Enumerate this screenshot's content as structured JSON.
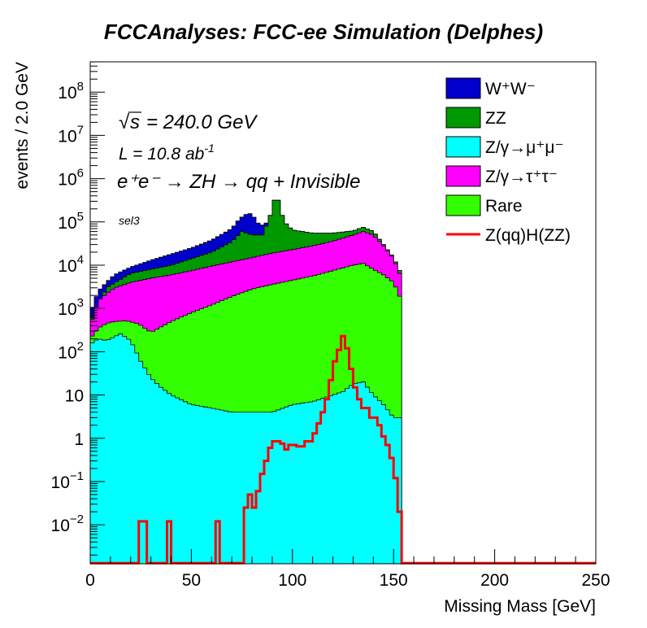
{
  "chart_data": {
    "type": "histogram-stacked",
    "title": "FCCAnalyses: FCC-ee Simulation (Delphes)",
    "xlabel": "Missing Mass [GeV]",
    "ylabel": "events / 2.0 GeV",
    "xlim": [
      0,
      250
    ],
    "ylim_log10": [
      -2.9,
      8.7
    ],
    "yscale": "log",
    "bin_width": 2.0,
    "x_ticks": [
      0,
      50,
      100,
      150,
      200,
      250
    ],
    "x_tick_labels": [
      "0",
      "50",
      "100",
      "150",
      "200",
      "250"
    ],
    "y_ticks": [
      {
        "value": 0.01,
        "base": "10",
        "exp": "−2"
      },
      {
        "value": 0.1,
        "base": "10",
        "exp": "−1"
      },
      {
        "value": 1,
        "base": "1",
        "exp": ""
      },
      {
        "value": 10,
        "base": "10",
        "exp": ""
      },
      {
        "value": 100,
        "base": "10",
        "exp": "2"
      },
      {
        "value": 1000,
        "base": "10",
        "exp": "3"
      },
      {
        "value": 10000,
        "base": "10",
        "exp": "4"
      },
      {
        "value": 100000,
        "base": "10",
        "exp": "5"
      },
      {
        "value": 1000000,
        "base": "10",
        "exp": "6"
      },
      {
        "value": 10000000,
        "base": "10",
        "exp": "7"
      },
      {
        "value": 100000000,
        "base": "10",
        "exp": "8"
      }
    ],
    "annotations": {
      "sqrt_s": "= 240.0 GeV",
      "lumi_main": "L = 10.8 ab",
      "lumi_exp": "-1",
      "process": "e⁺e⁻ → ZH → qq + Invisible",
      "selection": "sel3"
    },
    "legend": {
      "placement": "top-right",
      "entries": [
        {
          "label": "W⁺W⁻",
          "color": "#0000cc"
        },
        {
          "label": "ZZ",
          "color": "#009900"
        },
        {
          "label": "Z/γ→μ⁺μ⁻",
          "color": "#00ffff"
        },
        {
          "label": "Z/γ→τ⁺τ⁻",
          "color": "#ff00ff"
        },
        {
          "label": "Rare",
          "color": "#33ff00"
        },
        {
          "label": "Z(qq)H(ZZ)",
          "color": "#ff0000"
        }
      ]
    },
    "stack_order_bottom_to_top": [
      "Z/γ→μ⁺μ⁻",
      "Rare",
      "Z/γ→τ⁺τ⁻",
      "ZZ",
      "W⁺W⁻"
    ],
    "cumulative_envelopes": [
      {
        "name": "Z/γ→μ⁺μ⁻",
        "color": "#00ffff",
        "points": [
          [
            0,
            150
          ],
          [
            4,
            200
          ],
          [
            8,
            180
          ],
          [
            10,
            200
          ],
          [
            15,
            260
          ],
          [
            20,
            180
          ],
          [
            25,
            60
          ],
          [
            30,
            25
          ],
          [
            35,
            15
          ],
          [
            40,
            10
          ],
          [
            50,
            6
          ],
          [
            60,
            5
          ],
          [
            70,
            4
          ],
          [
            80,
            4
          ],
          [
            90,
            4
          ],
          [
            100,
            6
          ],
          [
            110,
            7
          ],
          [
            120,
            10
          ],
          [
            125,
            12
          ],
          [
            130,
            18
          ],
          [
            135,
            20
          ],
          [
            140,
            10
          ],
          [
            145,
            6
          ],
          [
            150,
            3
          ],
          [
            154,
            3
          ],
          [
            154.01,
            0.0013
          ]
        ]
      },
      {
        "name": "Rare",
        "color": "#33ff00",
        "points": [
          [
            0,
            200
          ],
          [
            4,
            350
          ],
          [
            8,
            450
          ],
          [
            12,
            500
          ],
          [
            18,
            520
          ],
          [
            24,
            440
          ],
          [
            30,
            280
          ],
          [
            40,
            500
          ],
          [
            50,
            800
          ],
          [
            60,
            1200
          ],
          [
            70,
            1900
          ],
          [
            80,
            2800
          ],
          [
            90,
            3600
          ],
          [
            100,
            4500
          ],
          [
            110,
            5600
          ],
          [
            120,
            7500
          ],
          [
            130,
            10000
          ],
          [
            135,
            11000
          ],
          [
            140,
            8000
          ],
          [
            145,
            6000
          ],
          [
            150,
            4000
          ],
          [
            154,
            1500
          ],
          [
            154.01,
            0.0013
          ]
        ]
      },
      {
        "name": "Z/γ→τ⁺τ⁻",
        "color": "#ff00ff",
        "points": [
          [
            0,
            400
          ],
          [
            4,
            1500
          ],
          [
            8,
            2200
          ],
          [
            12,
            3000
          ],
          [
            20,
            4000
          ],
          [
            30,
            5000
          ],
          [
            40,
            6000
          ],
          [
            50,
            7500
          ],
          [
            60,
            9500
          ],
          [
            70,
            12000
          ],
          [
            80,
            15000
          ],
          [
            90,
            19000
          ],
          [
            100,
            23000
          ],
          [
            110,
            28000
          ],
          [
            120,
            36000
          ],
          [
            130,
            50000
          ],
          [
            135,
            60000
          ],
          [
            140,
            50000
          ],
          [
            145,
            28000
          ],
          [
            150,
            14000
          ],
          [
            154,
            5000
          ],
          [
            154.01,
            0.0013
          ]
        ]
      },
      {
        "name": "ZZ",
        "color": "#009900",
        "points": [
          [
            0,
            500
          ],
          [
            8,
            3000
          ],
          [
            20,
            6500
          ],
          [
            40,
            10000
          ],
          [
            60,
            20000
          ],
          [
            70,
            35000
          ],
          [
            75,
            60000
          ],
          [
            80,
            50000
          ],
          [
            85,
            50000
          ],
          [
            88,
            100000
          ],
          [
            90,
            200000
          ],
          [
            92,
            500000
          ],
          [
            94,
            200000
          ],
          [
            96,
            100000
          ],
          [
            100,
            65000
          ],
          [
            110,
            55000
          ],
          [
            120,
            55000
          ],
          [
            130,
            62000
          ],
          [
            135,
            75000
          ],
          [
            140,
            60000
          ],
          [
            145,
            30000
          ],
          [
            150,
            15000
          ],
          [
            154,
            6000
          ],
          [
            154.01,
            0.0013
          ]
        ]
      },
      {
        "name": "W⁺W⁻",
        "color": "#0000cc",
        "points": [
          [
            0,
            800
          ],
          [
            4,
            2500
          ],
          [
            8,
            4000
          ],
          [
            12,
            6000
          ],
          [
            20,
            9000
          ],
          [
            30,
            13000
          ],
          [
            40,
            18000
          ],
          [
            50,
            25000
          ],
          [
            60,
            38000
          ],
          [
            70,
            70000
          ],
          [
            74,
            120000
          ],
          [
            78,
            160000
          ],
          [
            80,
            150000
          ],
          [
            84,
            80000
          ],
          [
            88,
            100000
          ],
          [
            90,
            200000
          ],
          [
            92,
            500000
          ],
          [
            94,
            200000
          ],
          [
            96,
            100000
          ],
          [
            100,
            65000
          ],
          [
            110,
            55000
          ],
          [
            120,
            55000
          ],
          [
            130,
            62000
          ],
          [
            135,
            75000
          ],
          [
            140,
            60000
          ],
          [
            145,
            30000
          ],
          [
            150,
            15000
          ],
          [
            154,
            6000
          ],
          [
            154.01,
            0.0013
          ]
        ]
      }
    ],
    "signal_line": {
      "name": "Z(qq)H(ZZ)",
      "color": "#ff0000",
      "points": [
        [
          0,
          0.0013
        ],
        [
          24,
          0.0013
        ],
        [
          24,
          0.012
        ],
        [
          28,
          0.012
        ],
        [
          28,
          0.0013
        ],
        [
          38,
          0.0013
        ],
        [
          38,
          0.012
        ],
        [
          40,
          0.012
        ],
        [
          40,
          0.0013
        ],
        [
          62,
          0.0013
        ],
        [
          62,
          0.012
        ],
        [
          64,
          0.012
        ],
        [
          64,
          0.0013
        ],
        [
          76,
          0.0013
        ],
        [
          76,
          0.025
        ],
        [
          78,
          0.025
        ],
        [
          78,
          0.05
        ],
        [
          80,
          0.05
        ],
        [
          80,
          0.025
        ],
        [
          82,
          0.025
        ],
        [
          82,
          0.06
        ],
        [
          84,
          0.06
        ],
        [
          84,
          0.15
        ],
        [
          86,
          0.15
        ],
        [
          86,
          0.3
        ],
        [
          88,
          0.3
        ],
        [
          88,
          0.6
        ],
        [
          90,
          0.6
        ],
        [
          90,
          0.85
        ],
        [
          94,
          0.85
        ],
        [
          94,
          0.75
        ],
        [
          96,
          0.75
        ],
        [
          96,
          0.55
        ],
        [
          98,
          0.55
        ],
        [
          98,
          0.7
        ],
        [
          102,
          0.7
        ],
        [
          102,
          0.65
        ],
        [
          106,
          0.65
        ],
        [
          106,
          0.85
        ],
        [
          110,
          0.85
        ],
        [
          110,
          1.3
        ],
        [
          112,
          1.3
        ],
        [
          112,
          2.2
        ],
        [
          114,
          2.2
        ],
        [
          114,
          4
        ],
        [
          116,
          4
        ],
        [
          116,
          8
        ],
        [
          118,
          8
        ],
        [
          118,
          22
        ],
        [
          120,
          22
        ],
        [
          120,
          60
        ],
        [
          122,
          60
        ],
        [
          122,
          110
        ],
        [
          124,
          110
        ],
        [
          124,
          230
        ],
        [
          126,
          230
        ],
        [
          126,
          120
        ],
        [
          128,
          120
        ],
        [
          128,
          40
        ],
        [
          130,
          40
        ],
        [
          130,
          15
        ],
        [
          132,
          15
        ],
        [
          132,
          8
        ],
        [
          134,
          8
        ],
        [
          134,
          5
        ],
        [
          138,
          5
        ],
        [
          138,
          3
        ],
        [
          142,
          3
        ],
        [
          142,
          2
        ],
        [
          144,
          2
        ],
        [
          144,
          1.1
        ],
        [
          146,
          1.1
        ],
        [
          146,
          0.7
        ],
        [
          148,
          0.7
        ],
        [
          148,
          0.35
        ],
        [
          150,
          0.35
        ],
        [
          150,
          0.12
        ],
        [
          152,
          0.12
        ],
        [
          152,
          0.02
        ],
        [
          154,
          0.02
        ],
        [
          154,
          0.0013
        ],
        [
          250,
          0.0013
        ]
      ]
    }
  }
}
